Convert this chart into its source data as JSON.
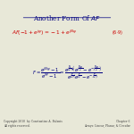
{
  "title": "Another Form Of $AF$",
  "title_color": "#000080",
  "title_af_color": "#cc0000",
  "bg_color": "#e8e8d8",
  "line1_left": "$AF\\left(-1+e^{j\\psi}\\right) = -1 + e^{jN\\psi}$",
  "line1_tag": "(6-9)",
  "line2": "$F = \\dfrac{e^{jN\\psi}-1}{e^{j\\psi}-1} = \\dfrac{e^{j\\frac{N}{2}\\psi}\\left(e^{j\\frac{N\\psi}{2}}-e^{-j\\frac{N\\psi}{2}}\\right)}{e^{j\\frac{\\psi}{2}}\\left(e^{j\\frac{\\psi}{2}}-e^{-j\\frac{\\psi}{2}}\\right)}$",
  "footer_left": "Copyright 2010  by Constantine A. Balanis\\nAll rights reserved.",
  "footer_right": "Chapter 6\\nArrays: Linear, Planar, & Circular",
  "formula_color": "#000080",
  "red_color": "#cc0000",
  "tag_color": "#cc0000"
}
